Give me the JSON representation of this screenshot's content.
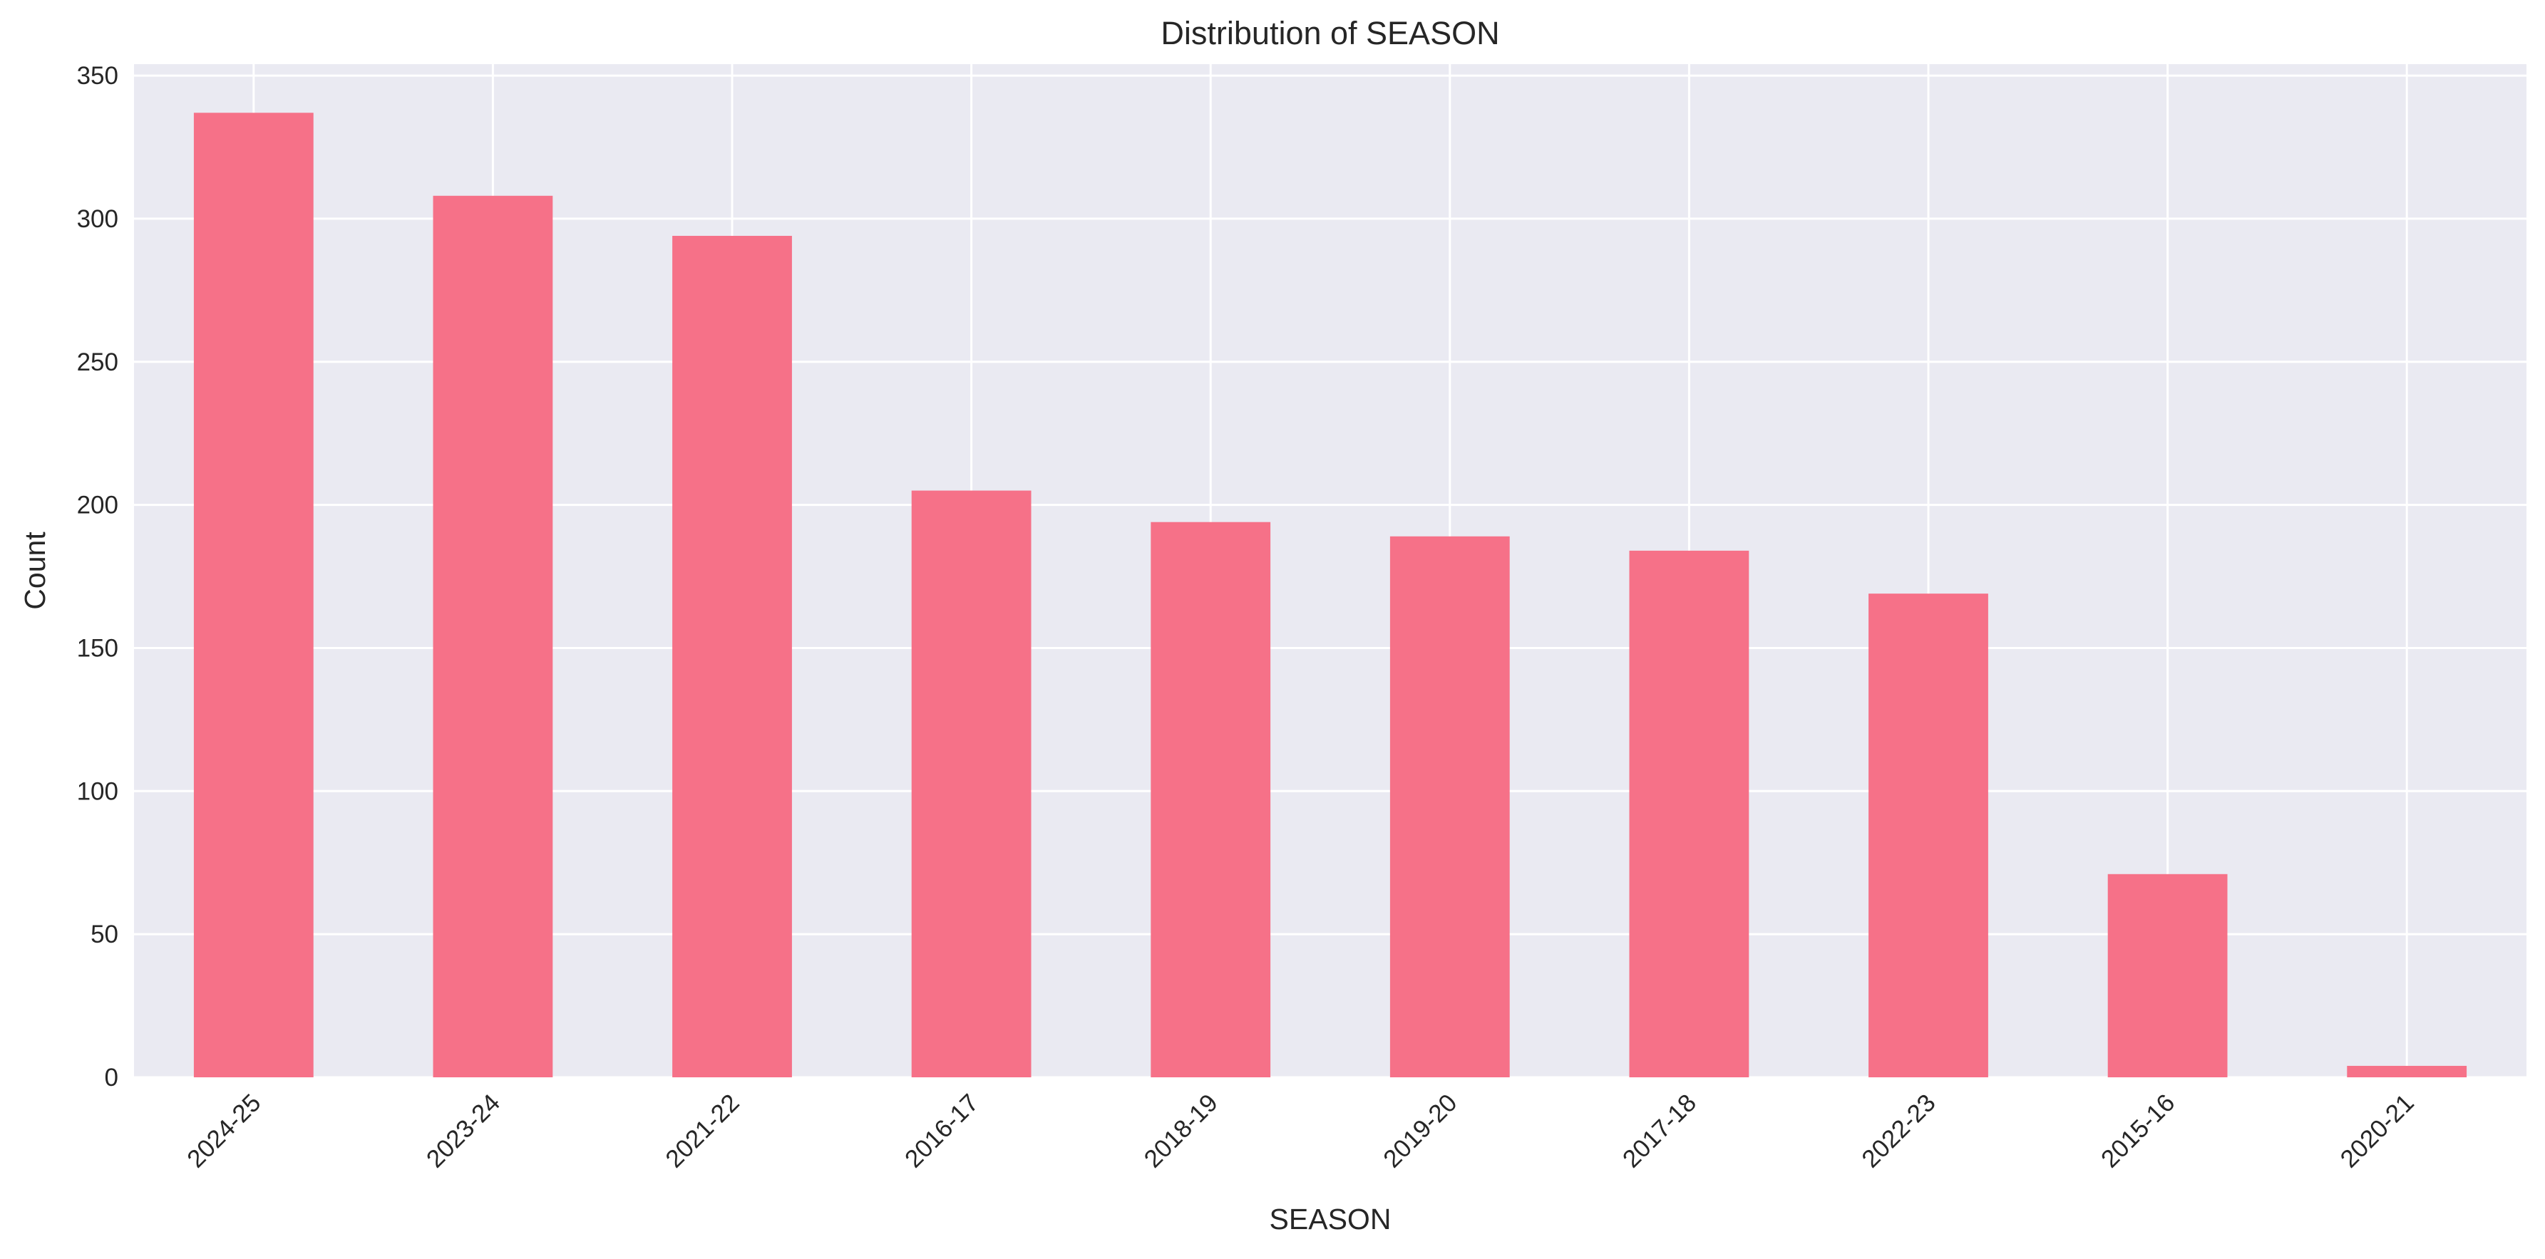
{
  "chart_data": {
    "type": "bar",
    "title": "Distribution of SEASON",
    "xlabel": "SEASON",
    "ylabel": "Count",
    "categories": [
      "2024-25",
      "2023-24",
      "2021-22",
      "2016-17",
      "2018-19",
      "2019-20",
      "2017-18",
      "2022-23",
      "2015-16",
      "2020-21"
    ],
    "values": [
      337,
      308,
      294,
      205,
      194,
      189,
      184,
      169,
      71,
      4
    ],
    "ylim": [
      0,
      354
    ],
    "yticks": [
      0,
      50,
      100,
      150,
      200,
      250,
      300,
      350
    ],
    "ytick_labels": [
      "0",
      "50",
      "100",
      "150",
      "200",
      "250",
      "300",
      "350"
    ],
    "grid": true,
    "colors": {
      "bar": "#f67188",
      "plot_background": "#eaeaf2",
      "grid": "#ffffff",
      "text": "#262626"
    }
  }
}
